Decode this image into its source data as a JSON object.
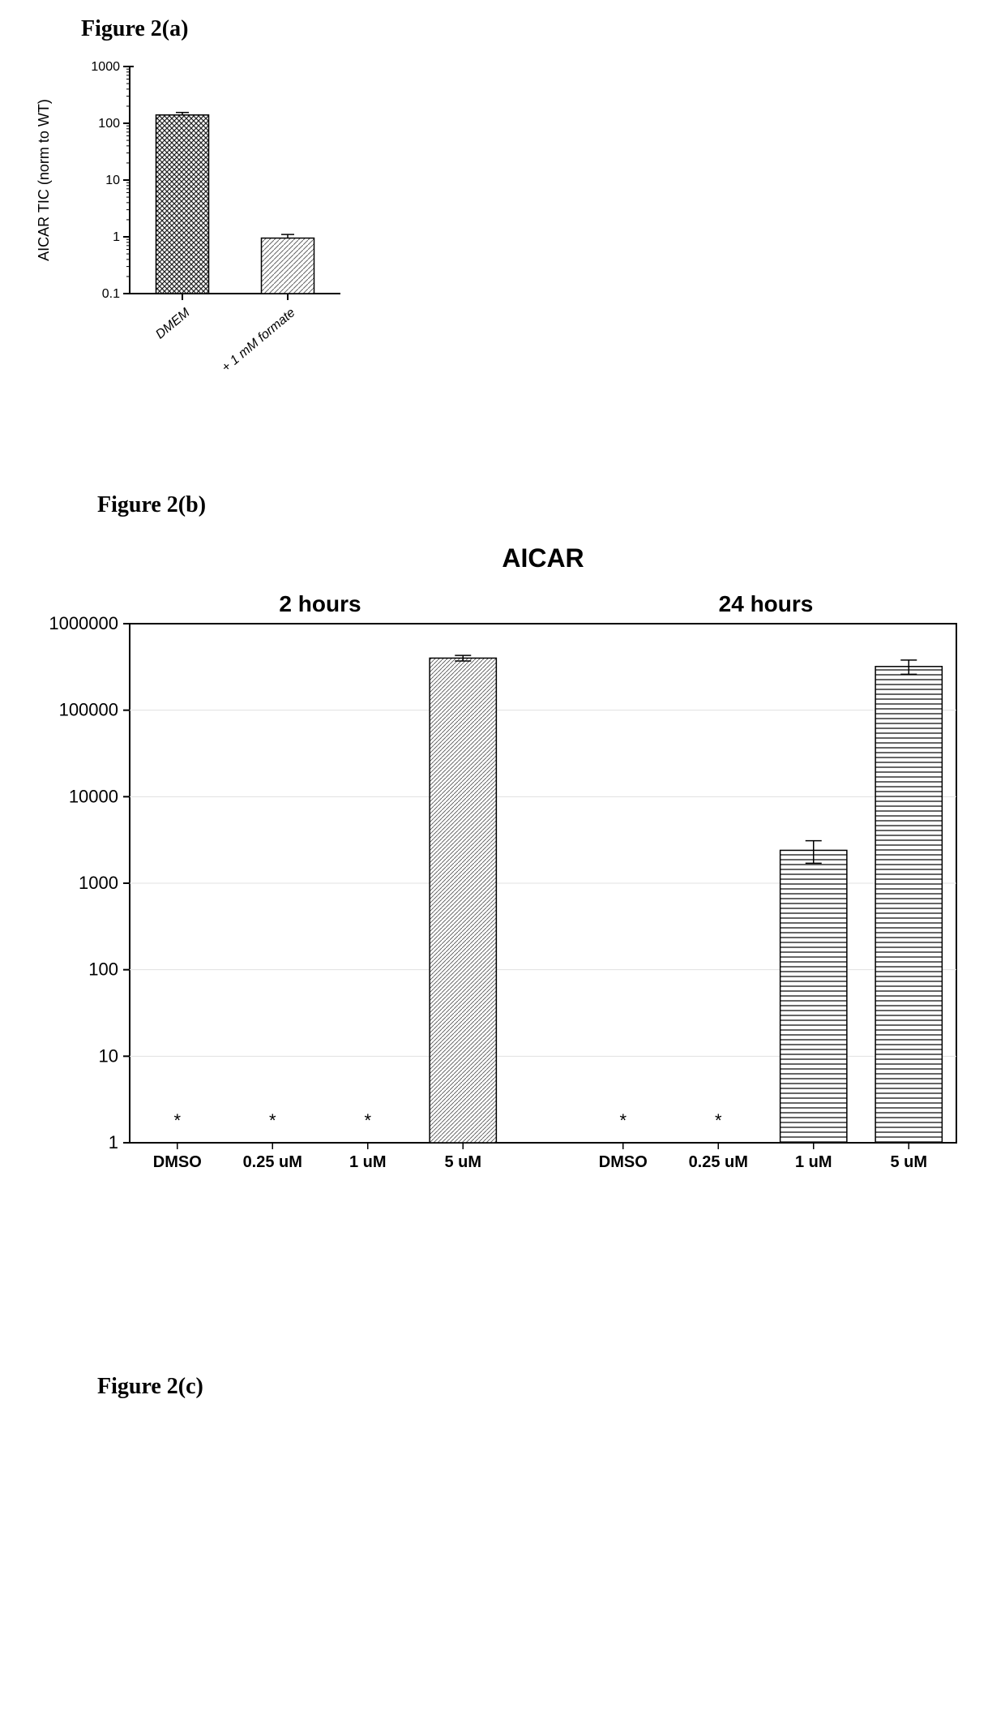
{
  "figure2a": {
    "label": "Figure 2(a)",
    "type": "bar",
    "ylabel": "AICAR TIC (norm to WT)",
    "yscale": "log",
    "ylim": [
      0.1,
      1000
    ],
    "yticks": [
      0.1,
      1,
      10,
      100,
      1000
    ],
    "ytick_labels": [
      "0.1",
      "1",
      "10",
      "100",
      "1000"
    ],
    "categories": [
      "DMEM",
      "+ 1 mM formate"
    ],
    "values": [
      140,
      0.95
    ],
    "errors": [
      15,
      0.15
    ],
    "bar_patterns": [
      "crosshatch-dark",
      "diag-light"
    ],
    "bar_colors": [
      "#333333",
      "#888888"
    ],
    "background_color": "#ffffff",
    "axis_color": "#000000",
    "label_fontsize": 18,
    "tick_fontsize": 16,
    "bar_width": 0.5
  },
  "figure2b": {
    "label": "Figure 2(b)",
    "title": "AICAR",
    "type": "bar",
    "yscale": "log",
    "ylim": [
      1,
      1000000
    ],
    "yticks": [
      1,
      10,
      100,
      1000,
      10000,
      100000,
      1000000
    ],
    "ytick_labels": [
      "1",
      "10",
      "100",
      "1000",
      "10000",
      "100000",
      "1000000"
    ],
    "groups": [
      {
        "label": "2 hours",
        "pattern": "diag-light",
        "categories": [
          "DMSO",
          "0.25 uM",
          "1 uM",
          "5 uM"
        ],
        "values": [
          null,
          null,
          null,
          400000
        ],
        "errors": [
          null,
          null,
          null,
          30000
        ],
        "asterisks": [
          true,
          true,
          true,
          false
        ]
      },
      {
        "label": "24 hours",
        "pattern": "horiz-lines",
        "categories": [
          "DMSO",
          "0.25 uM",
          "1 uM",
          "5 uM"
        ],
        "values": [
          null,
          null,
          2400,
          320000
        ],
        "errors": [
          null,
          null,
          700,
          60000
        ],
        "asterisks": [
          true,
          true,
          false,
          false
        ]
      }
    ],
    "background_color": "#ffffff",
    "axis_color": "#000000",
    "grid_color": "#e0e0e0",
    "title_fontsize": 32,
    "group_label_fontsize": 28,
    "tick_fontsize": 22,
    "xtick_fontsize": 20,
    "asterisk_fontsize": 22,
    "bar_width": 0.7
  },
  "figure2c": {
    "label": "Figure 2(c)"
  }
}
